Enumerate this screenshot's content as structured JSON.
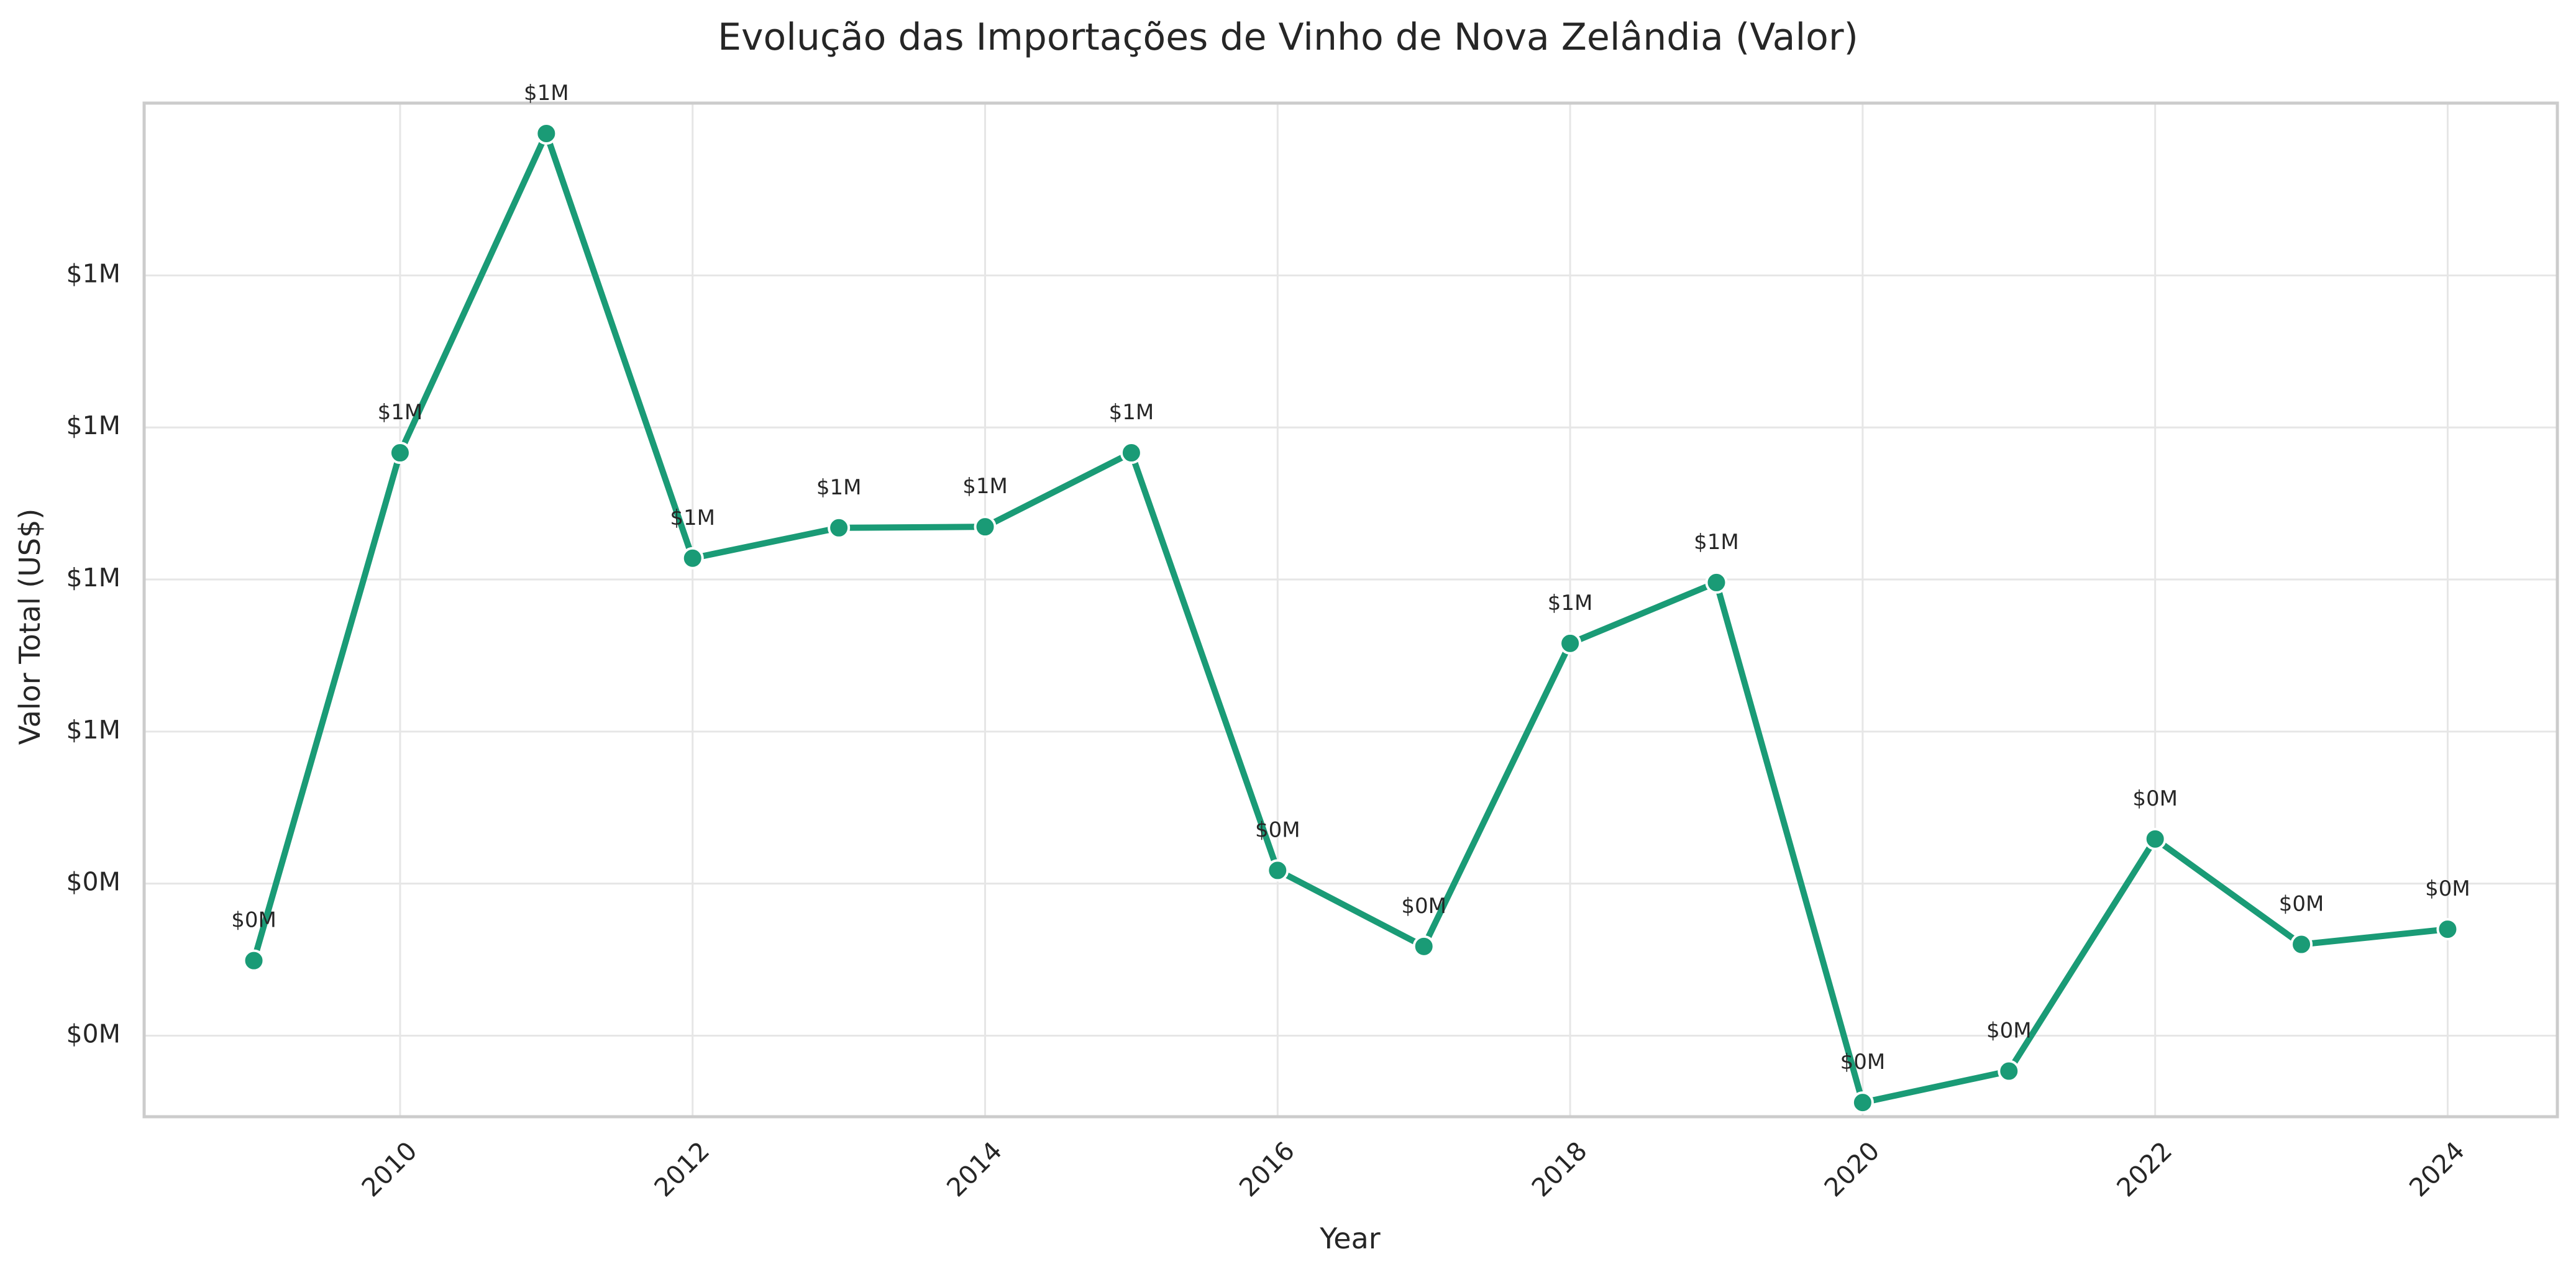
{
  "chart_data": {
    "type": "line",
    "title": "Evolução das Importações de Vinho de Nova Zelândia (Valor)",
    "xlabel": "Year",
    "ylabel": "Valor Total (US$)",
    "x": [
      2009,
      2010,
      2011,
      2012,
      2013,
      2014,
      2015,
      2016,
      2017,
      2018,
      2019,
      2020,
      2021,
      2022,
      2023,
      2024
    ],
    "series": [
      {
        "values": [
          354000,
          855000,
          1170000,
          751000,
          781000,
          782000,
          855000,
          443000,
          368000,
          667000,
          727000,
          214000,
          245000,
          474000,
          370000,
          385000
        ],
        "labels": [
          "$0M",
          "$1M",
          "$1M",
          "$1M",
          "$1M",
          "$1M",
          "$1M",
          "$0M",
          "$0M",
          "$1M",
          "$1M",
          "$0M",
          "$0M",
          "$0M",
          "$0M",
          "$0M"
        ]
      }
    ],
    "xlim": [
      2008.25,
      2024.75
    ],
    "ylim": [
      200000,
      1200000
    ],
    "xticks": [
      2010,
      2012,
      2014,
      2016,
      2018,
      2020,
      2022,
      2024
    ],
    "yticks": [
      {
        "value": 280000,
        "label": "$0M"
      },
      {
        "value": 430000,
        "label": "$0M"
      },
      {
        "value": 580000,
        "label": "$1M"
      },
      {
        "value": 730000,
        "label": "$1M"
      },
      {
        "value": 880000,
        "label": "$1M"
      },
      {
        "value": 1030000,
        "label": "$1M"
      }
    ],
    "grid": true,
    "line_color": "#1a9b76",
    "marker_color": "#1a9b76"
  }
}
